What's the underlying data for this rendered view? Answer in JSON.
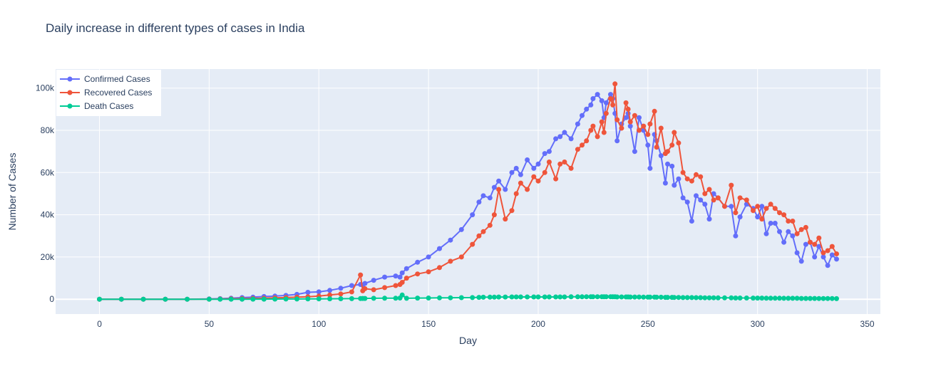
{
  "chart_data": {
    "type": "line",
    "title": "Daily increase in different types of cases in India",
    "xlabel": "Day",
    "ylabel": "Number of Cases",
    "xlim": [
      -20,
      356
    ],
    "ylim": [
      -7000,
      109000
    ],
    "x_ticks": [
      0,
      50,
      100,
      150,
      200,
      250,
      300,
      350
    ],
    "y_ticks": [
      0,
      20000,
      40000,
      60000,
      80000,
      100000
    ],
    "y_tick_labels": [
      "0",
      "20k",
      "40k",
      "60k",
      "80k",
      "100k"
    ],
    "grid": true,
    "legend_position": "top-left",
    "colors": {
      "plot_bg": "#e5ecf6",
      "grid": "#ffffff",
      "text": "#2a3f5f"
    },
    "x": [
      0,
      10,
      20,
      30,
      40,
      50,
      55,
      60,
      65,
      70,
      75,
      80,
      85,
      90,
      95,
      100,
      105,
      110,
      115,
      119,
      120,
      121,
      125,
      130,
      135,
      137,
      138,
      140,
      145,
      150,
      155,
      160,
      165,
      170,
      173,
      175,
      178,
      180,
      182,
      185,
      188,
      190,
      192,
      195,
      198,
      200,
      203,
      205,
      208,
      210,
      212,
      215,
      218,
      220,
      222,
      224,
      225,
      227,
      229,
      230,
      231,
      233,
      234,
      235,
      236,
      238,
      240,
      241,
      242,
      244,
      246,
      248,
      250,
      251,
      253,
      254,
      256,
      258,
      259,
      261,
      262,
      264,
      266,
      268,
      270,
      272,
      274,
      276,
      278,
      280,
      282,
      285,
      288,
      290,
      292,
      295,
      298,
      300,
      302,
      304,
      306,
      308,
      310,
      312,
      314,
      316,
      318,
      320,
      322,
      324,
      326,
      328,
      330,
      332,
      334,
      336
    ],
    "series": [
      {
        "name": "Confirmed Cases",
        "color": "#636efa",
        "values": [
          0,
          0,
          0,
          5,
          30,
          150,
          300,
          500,
          800,
          1000,
          1300,
          1500,
          1800,
          2300,
          3300,
          3500,
          4200,
          5200,
          6500,
          7000,
          6800,
          7500,
          9000,
          10500,
          11000,
          10500,
          12500,
          14500,
          17500,
          20000,
          24000,
          28000,
          33000,
          40000,
          46000,
          49000,
          48000,
          53000,
          56000,
          52000,
          60000,
          62000,
          59000,
          66000,
          62000,
          64000,
          69000,
          70000,
          76000,
          77000,
          79000,
          76000,
          83000,
          87000,
          90000,
          92000,
          95000,
          97000,
          94000,
          86000,
          93000,
          97000,
          95000,
          88000,
          75000,
          83000,
          86000,
          88000,
          82000,
          70000,
          86000,
          80000,
          73000,
          62000,
          78000,
          75000,
          68000,
          55000,
          64000,
          63000,
          54000,
          57000,
          48000,
          46000,
          37000,
          49000,
          47000,
          45000,
          38000,
          50000,
          48000,
          44000,
          44000,
          30000,
          39000,
          45000,
          43000,
          39000,
          44000,
          31000,
          36000,
          36000,
          32000,
          27000,
          32000,
          30000,
          22000,
          18000,
          26000,
          27000,
          20000,
          25000,
          20000,
          16000,
          21000,
          19000
        ]
      },
      {
        "name": "Recovered Cases",
        "color": "#ef553b",
        "values": [
          0,
          0,
          0,
          0,
          10,
          50,
          120,
          200,
          300,
          400,
          500,
          700,
          800,
          1000,
          1200,
          1500,
          2000,
          2500,
          3500,
          11500,
          4000,
          5000,
          4500,
          5500,
          6500,
          7000,
          8000,
          10000,
          12000,
          13000,
          15000,
          18000,
          20000,
          26000,
          30000,
          32000,
          35000,
          40000,
          52000,
          38000,
          42000,
          50000,
          55000,
          52000,
          58000,
          56000,
          60000,
          65000,
          57000,
          64000,
          65000,
          62000,
          71000,
          73000,
          75000,
          80000,
          82000,
          77000,
          84000,
          79000,
          88000,
          95000,
          92000,
          102000,
          85000,
          81000,
          93000,
          90000,
          84000,
          87000,
          80000,
          82000,
          78000,
          83000,
          89000,
          72000,
          81000,
          69000,
          70000,
          73000,
          79000,
          74000,
          60000,
          57000,
          56000,
          59000,
          58000,
          50000,
          52000,
          47000,
          48000,
          44000,
          54000,
          41000,
          48000,
          47000,
          42000,
          44000,
          38000,
          43000,
          45000,
          43000,
          41000,
          40000,
          37000,
          37000,
          31000,
          33000,
          34000,
          27000,
          26000,
          29000,
          22000,
          23000,
          25000,
          21500
        ]
      },
      {
        "name": "Death Cases",
        "color": "#00cc96",
        "values": [
          0,
          0,
          0,
          0,
          2,
          5,
          8,
          15,
          30,
          40,
          60,
          80,
          100,
          120,
          150,
          180,
          200,
          250,
          300,
          350,
          370,
          400,
          450,
          500,
          500,
          600,
          2000,
          450,
          550,
          600,
          650,
          700,
          750,
          800,
          900,
          950,
          1000,
          1000,
          1050,
          1050,
          1100,
          1100,
          1100,
          1100,
          1100,
          1100,
          1100,
          1100,
          1100,
          1100,
          1100,
          1150,
          1150,
          1150,
          1200,
          1200,
          1200,
          1200,
          1200,
          1200,
          1200,
          1200,
          1150,
          1150,
          1100,
          1100,
          1100,
          1100,
          1050,
          1050,
          1050,
          1000,
          1000,
          1000,
          1000,
          950,
          950,
          900,
          900,
          900,
          850,
          850,
          800,
          800,
          800,
          750,
          750,
          700,
          700,
          700,
          650,
          650,
          650,
          600,
          600,
          600,
          550,
          550,
          550,
          500,
          500,
          500,
          500,
          450,
          450,
          450,
          450,
          400,
          400,
          400,
          400,
          350,
          350,
          350,
          350,
          300
        ]
      }
    ]
  }
}
